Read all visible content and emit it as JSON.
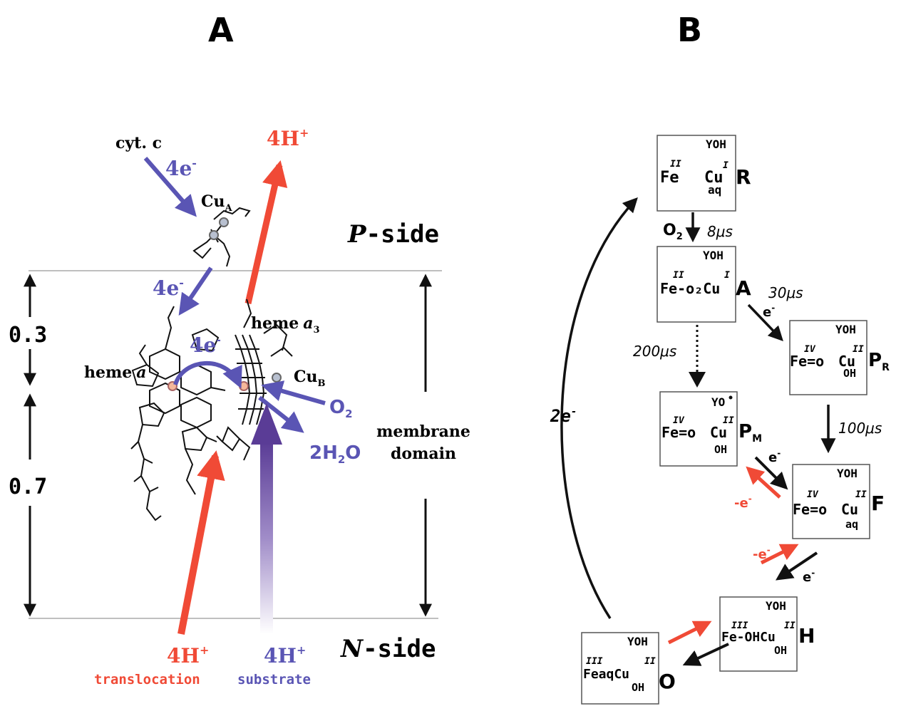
{
  "panel_a": {
    "letter": "A",
    "cyt_c": "cyt. c",
    "cyt_c_e": "4e",
    "cu_a": "Cu",
    "cu_a_sub": "A",
    "top_h": "4H",
    "top_h_sup": "+",
    "p_side_letter": "P",
    "p_side_rest": "-side",
    "cu_a_e": "4e",
    "heme_a3": "heme",
    "heme_a3_italic": "a",
    "heme_a3_sub": "3",
    "heme_a": "heme",
    "heme_a_italic": "a",
    "internal_e": "4e",
    "cu_b": "Cu",
    "cu_b_sub": "B",
    "o2": "O",
    "o2_sub": "2",
    "water_2h": "2H",
    "water_sub": "2",
    "water_o": "O",
    "depth_top": "0.3",
    "depth_bottom": "0.7",
    "membrane_1": "membrane",
    "membrane_2": "domain",
    "translocation_h": "4H",
    "translocation_label": "translocation",
    "substrate_h": "4H",
    "substrate_label": "substrate",
    "n_side_letter": "N",
    "n_side_rest": "-side",
    "electron_sup": "-",
    "plus_sup": "+"
  },
  "panel_b": {
    "letter": "B",
    "cycle_e": "2e",
    "states": {
      "R": {
        "label": "R",
        "yoh": "YOH",
        "fe_ox": "II",
        "fe": "Fe",
        "cu_ox": "I",
        "cu": "Cu",
        "cu_lig": "aq"
      },
      "A": {
        "label": "A",
        "yoh": "YOH",
        "fe_ox": "II",
        "fe": "Fe-o₂Cu",
        "cu_ox": "I"
      },
      "PR": {
        "label": "P",
        "label_sub": "R",
        "yoh": "YOH",
        "fe_ox": "IV",
        "fe": "Fe=o",
        "cu_ox": "II",
        "cu": "Cu",
        "cu_lig": "OH"
      },
      "PM": {
        "label": "P",
        "label_sub": "M",
        "yoh": "YO",
        "fe_ox": "IV",
        "fe": "Fe=o",
        "cu_ox": "II",
        "cu": "Cu",
        "cu_lig": "OH"
      },
      "F": {
        "label": "F",
        "yoh": "YOH",
        "fe_ox": "IV",
        "fe": "Fe=o",
        "cu_ox": "II",
        "cu": "Cu",
        "cu_lig": "aq"
      },
      "H": {
        "label": "H",
        "yoh": "YOH",
        "fe_ox": "III",
        "fe": "Fe-OHCu",
        "cu_ox": "II",
        "cu_lig": "OH"
      },
      "O": {
        "label": "O",
        "yoh": "YOH",
        "fe_ox": "III",
        "fe": "FeaqCu",
        "cu_ox": "II",
        "cu_lig": "OH"
      }
    },
    "transitions": {
      "r_to_a_o2": "O",
      "r_to_a_o2_sub": "2",
      "r_to_a_time": "8μs",
      "a_to_pr_time": "30μs",
      "a_to_pr_e": "e",
      "a_to_pm_time": "200μs",
      "pr_to_f_time": "100μs",
      "pm_f_e": "e",
      "pm_f_rev_e": "-e",
      "f_h_rev_e": "-e",
      "f_h_e": "e"
    },
    "colors": {
      "red": "#f04a36",
      "blue": "#5a55b4",
      "black": "#111111"
    }
  }
}
